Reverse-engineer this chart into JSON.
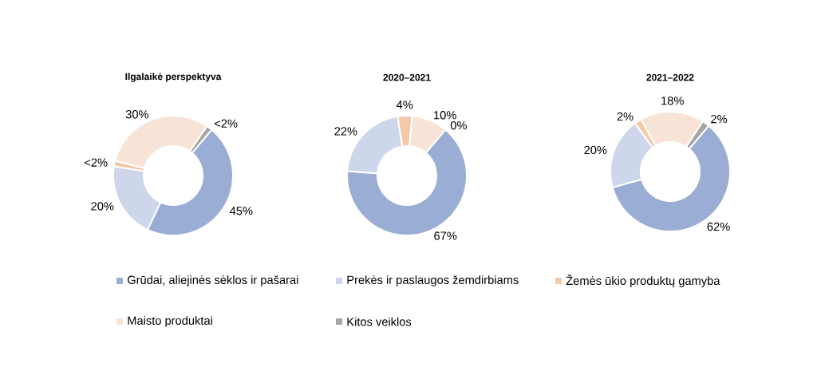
{
  "chart_data": [
    {
      "type": "donut",
      "title": "Ilgalaikė perspektyva",
      "categories": [
        "Grūdai, aliejinės sėklos ir pašarai",
        "Prekės ir paslaugos žemdirbiams",
        "Žemės ūkio produktų gamyba",
        "Maisto produktai",
        "Kitos veiklos"
      ],
      "values": [
        45,
        20,
        1.5,
        30,
        1.5
      ],
      "value_labels": [
        "45%",
        "20%",
        "<2%",
        "30%",
        "<2%"
      ],
      "colors": [
        "#9aadd4",
        "#cdd6ea",
        "#f4c9a8",
        "#f8e4d7",
        "#a6a6a6"
      ],
      "legend": "bottom"
    },
    {
      "type": "donut",
      "title": "2020–2021",
      "categories": [
        null,
        null,
        null,
        null,
        null
      ],
      "values": [
        67,
        22,
        4,
        10,
        0
      ],
      "value_labels": [
        "67%",
        "22%",
        "4%",
        "10%",
        "0%"
      ],
      "colors": [
        "#9aadd4",
        "#cdd6ea",
        "#f4c9a8",
        "#f8e4d7",
        "#a6a6a6"
      ]
    },
    {
      "type": "donut",
      "title": "2021–2022",
      "categories": [
        null,
        null,
        null,
        null,
        null
      ],
      "values": [
        62,
        20,
        2,
        18,
        2
      ],
      "value_labels": [
        "62%",
        "20%",
        "2%",
        "18%",
        "2%"
      ],
      "colors": [
        "#9aadd4",
        "#cdd6ea",
        "#f4c9a8",
        "#f8e4d7",
        "#a6a6a6"
      ]
    }
  ]
}
